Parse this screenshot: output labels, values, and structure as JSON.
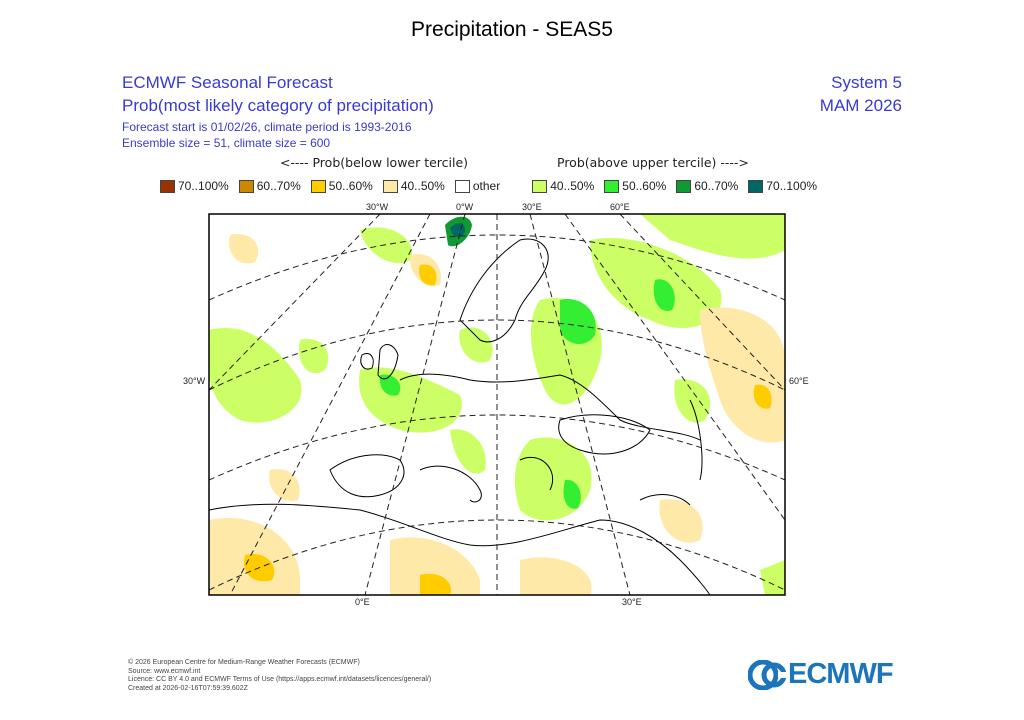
{
  "title": "Precipitation - SEAS5",
  "header": {
    "line1": "ECMWF Seasonal Forecast",
    "line2": "Prob(most likely category of precipitation)",
    "line3": "Forecast start is 01/02/26, climate period is 1993-2016",
    "line4": "Ensemble size = 51, climate size = 600",
    "system": "System 5",
    "season": "MAM 2026"
  },
  "legend": {
    "below_label": "<---- Prob(below lower tercile)",
    "above_label": "Prob(above upper tercile) ---->",
    "items": [
      {
        "label": "70..100%",
        "color": "#993300"
      },
      {
        "label": "60..70%",
        "color": "#cc8800"
      },
      {
        "label": "50..60%",
        "color": "#ffcc00"
      },
      {
        "label": "40..50%",
        "color": "#ffe9a8"
      },
      {
        "label": "other",
        "color": "#ffffff"
      },
      {
        "label": "40..50%",
        "color": "#ccff66"
      },
      {
        "label": "50..60%",
        "color": "#33ee33"
      },
      {
        "label": "60..70%",
        "color": "#119933"
      },
      {
        "label": "70..100%",
        "color": "#006666"
      }
    ]
  },
  "map": {
    "top_ticks": [
      "30°W",
      "0°W",
      "30°E",
      "60°E"
    ],
    "left_tick": "30°W",
    "right_tick": "60°E",
    "bottom_ticks": [
      "0°E",
      "30°E"
    ]
  },
  "footer": {
    "lines": [
      "© 2026 European Centre for Medium-Range Weather Forecasts (ECMWF)",
      "Source: www.ecmwf.int",
      "Licence: CC BY 4.0 and ECMWF Terms of Use (https://apps.ecmwf.int/datasets/licences/general/)",
      "Created at 2026-02-16T07:59:39.602Z"
    ],
    "logo_text": "ECMWF",
    "logo_color": "#1c75bc"
  }
}
